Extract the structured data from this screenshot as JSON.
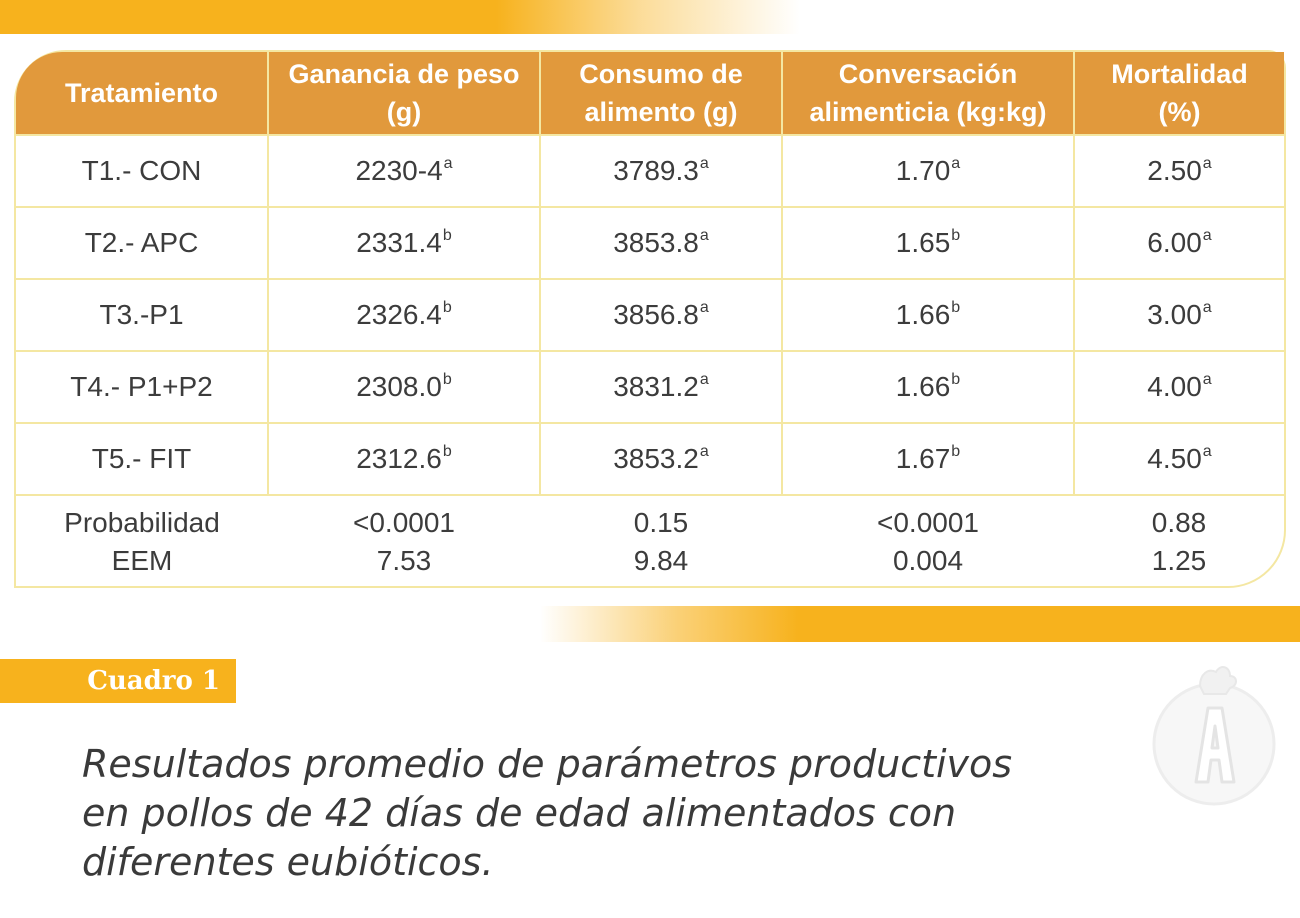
{
  "table": {
    "headers": [
      {
        "line1": "Tratamiento",
        "line2": ""
      },
      {
        "line1": "Ganancia de peso",
        "line2": "(g)"
      },
      {
        "line1": "Consumo de",
        "line2": "alimento (g)"
      },
      {
        "line1": "Conversación",
        "line2": "alimenticia (kg:kg)"
      },
      {
        "line1": "Mortalidad",
        "line2": "(%)"
      }
    ],
    "rows": [
      {
        "treatment": "T1.- CON",
        "gain": "2230-4",
        "gain_sup": "a",
        "intake": "3789.3",
        "intake_sup": "a",
        "conversion": "1.70",
        "conversion_sup": "a",
        "mortality": "2.50",
        "mortality_sup": "a"
      },
      {
        "treatment": "T2.- APC",
        "gain": "2331.4",
        "gain_sup": "b",
        "intake": "3853.8",
        "intake_sup": "a",
        "conversion": "1.65",
        "conversion_sup": "b",
        "mortality": "6.00",
        "mortality_sup": "a"
      },
      {
        "treatment": "T3.-P1",
        "gain": "2326.4",
        "gain_sup": "b",
        "intake": "3856.8",
        "intake_sup": "a",
        "conversion": "1.66",
        "conversion_sup": "b",
        "mortality": "3.00",
        "mortality_sup": "a"
      },
      {
        "treatment": "T4.- P1+P2",
        "gain": "2308.0",
        "gain_sup": "b",
        "intake": "3831.2",
        "intake_sup": "a",
        "conversion": "1.66",
        "conversion_sup": "b",
        "mortality": "4.00",
        "mortality_sup": "a"
      },
      {
        "treatment": "T5.- FIT",
        "gain": "2312.6",
        "gain_sup": "b",
        "intake": "3853.2",
        "intake_sup": "a",
        "conversion": "1.67",
        "conversion_sup": "b",
        "mortality": "4.50",
        "mortality_sup": "a"
      }
    ],
    "stats": {
      "probability_label": "Probabilidad",
      "eem_label": "EEM",
      "probability": [
        "<0.0001",
        "0.15",
        "<0.0001",
        "0.88"
      ],
      "eem": [
        "7.53",
        "9.84",
        "0.004",
        "1.25"
      ]
    }
  },
  "cuadro_label": "Cuadro 1",
  "caption_lines": [
    "Resultados promedio de parámetros productivos",
    "en pollos de 42 días de edad alimentados con",
    "diferentes eubióticos."
  ],
  "logo": {
    "icon": "rooster-logo-icon",
    "letter": "A"
  },
  "colors": {
    "header_bg": "#e1993c",
    "accent_yellow": "#f7b21d",
    "border": "#f4e7a2",
    "text": "#3c3c3c"
  }
}
